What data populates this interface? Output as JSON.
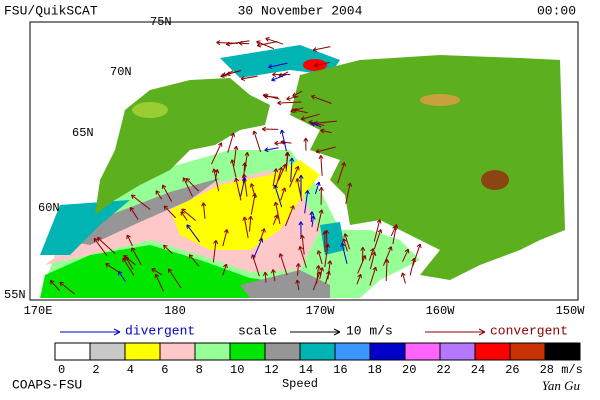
{
  "header": {
    "title": "FSU/QuikSCAT",
    "date": "30 November 2004",
    "time": "00:00"
  },
  "map": {
    "lat_labels": [
      "75N",
      "70N",
      "65N",
      "60N",
      "55N"
    ],
    "lon_labels": [
      "170E",
      "180",
      "170W",
      "160W",
      "150W"
    ]
  },
  "legend": {
    "divergent": "divergent",
    "scale": "scale",
    "scale_value": "10 m/s",
    "convergent": "convergent"
  },
  "colorbar": {
    "title": "Speed",
    "labels": [
      "0",
      "2",
      "4",
      "6",
      "8",
      "10",
      "12",
      "14",
      "16",
      "18",
      "20",
      "22",
      "24",
      "26",
      "28 m/s"
    ],
    "colors": [
      "#ffffff",
      "#c8c8c8",
      "#ffff00",
      "#ffc8c8",
      "#96ff96",
      "#00e600",
      "#969696",
      "#00b4b4",
      "#3c96ff",
      "#0000c8",
      "#ff64ff",
      "#b478ff",
      "#ff0000",
      "#c83200",
      "#000000"
    ]
  },
  "footer": {
    "credit": "COAPS-FSU",
    "author": "Yan Gu"
  }
}
